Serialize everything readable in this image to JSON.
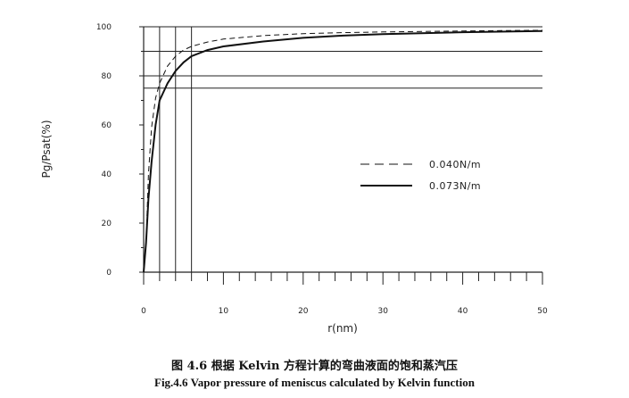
{
  "chart_data": {
    "type": "line",
    "xlabel": "r(nm)",
    "ylabel": "Pg/Psat(%)",
    "xlim": [
      0,
      50
    ],
    "ylim": [
      0,
      100
    ],
    "xticks": [
      "0",
      "10",
      "20",
      "30",
      "40",
      "50"
    ],
    "yticks": [
      "0",
      "20",
      "40",
      "60",
      "80",
      "100"
    ],
    "reference_lines": {
      "horizontal": [
        75,
        80,
        90,
        100
      ],
      "vertical": [
        2,
        4,
        6
      ]
    },
    "legend_position": "center-right",
    "series": [
      {
        "name": "0.040N/m",
        "style": "dashed",
        "x": [
          0.3,
          0.6,
          1,
          1.5,
          2,
          3,
          4,
          5,
          6,
          8,
          10,
          15,
          20,
          25,
          30,
          40,
          50
        ],
        "y": [
          12,
          40,
          59,
          71,
          77,
          84,
          88,
          90.5,
          92,
          93.8,
          95,
          96.4,
          97.2,
          97.6,
          97.9,
          98.3,
          98.6
        ]
      },
      {
        "name": "0.073N/m",
        "style": "solid",
        "x": [
          0,
          0.3,
          0.6,
          1,
          1.5,
          2,
          3,
          4,
          5,
          6,
          8,
          10,
          15,
          20,
          25,
          30,
          40,
          50
        ],
        "y": [
          0,
          12,
          30,
          45,
          60,
          70,
          77,
          82,
          85.5,
          88,
          90.5,
          92,
          94,
          95.5,
          96.4,
          97,
          97.8,
          98.3
        ]
      }
    ]
  },
  "caption": {
    "chinese": "图 4.6 根据 Kelvin 方程计算的弯曲液面的饱和蒸汽压",
    "english": "Fig.4.6 Vapor pressure of meniscus calculated by Kelvin function"
  }
}
